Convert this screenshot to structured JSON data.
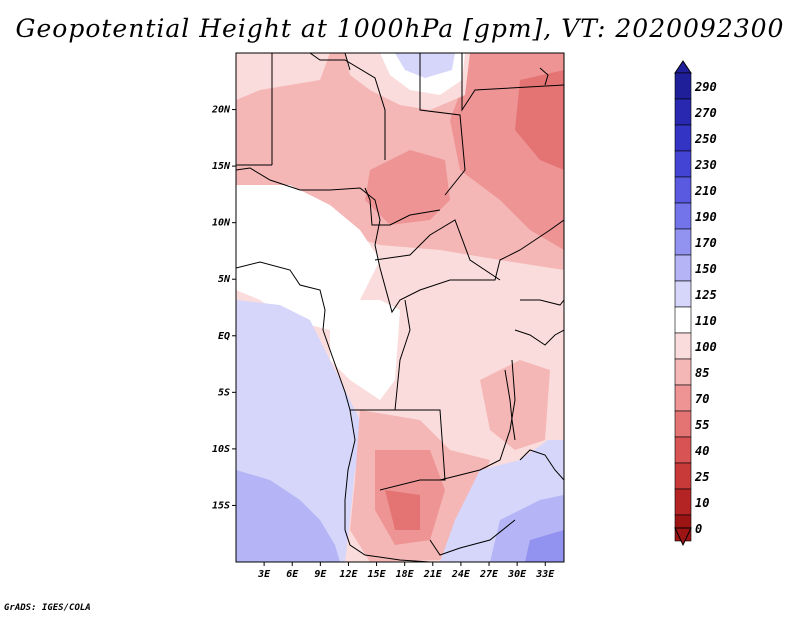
{
  "title": "Geopotential Height at 1000hPa [gpm], VT: 2020092300",
  "credit": "GrADS: IGES/COLA",
  "map": {
    "lat_labels": [
      "20N",
      "15N",
      "10N",
      "5N",
      "EQ",
      "5S",
      "10S",
      "15S"
    ],
    "lat_values": [
      20,
      15,
      10,
      5,
      0,
      -5,
      -10,
      -15
    ],
    "lon_labels": [
      "3E",
      "6E",
      "9E",
      "12E",
      "15E",
      "18E",
      "21E",
      "24E",
      "27E",
      "30E",
      "33E"
    ],
    "lon_values": [
      3,
      6,
      9,
      12,
      15,
      18,
      21,
      24,
      27,
      30,
      33
    ],
    "lat_range": [
      -20,
      25
    ],
    "lon_range": [
      0,
      35
    ]
  },
  "colorbar": {
    "labels": [
      "290",
      "270",
      "250",
      "230",
      "210",
      "190",
      "170",
      "150",
      "125",
      "110",
      "100",
      "85",
      "70",
      "55",
      "40",
      "25",
      "10",
      "0"
    ],
    "colors": [
      "#1f1f99",
      "#2828b0",
      "#3434c4",
      "#4444d4",
      "#5a5ae0",
      "#7474ea",
      "#9292f0",
      "#b4b4f6",
      "#d6d6fa",
      "#ffffff",
      "#fbdcdc",
      "#f5b6b6",
      "#ee9494",
      "#e47474",
      "#d85454",
      "#c83a3a",
      "#b42424",
      "#9c1414"
    ]
  }
}
